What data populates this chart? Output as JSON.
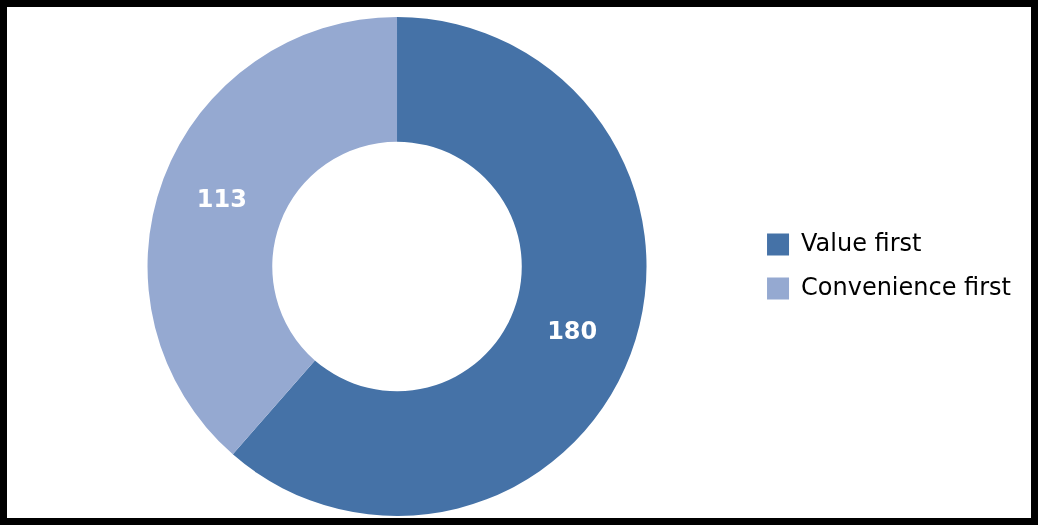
{
  "chart_data": {
    "type": "donut",
    "categories": [
      "Value first",
      "Convenience first"
    ],
    "values": [
      180,
      113
    ],
    "colors": [
      "#4572a7",
      "#95a9d1"
    ],
    "data_labels": true,
    "legend": "right"
  }
}
